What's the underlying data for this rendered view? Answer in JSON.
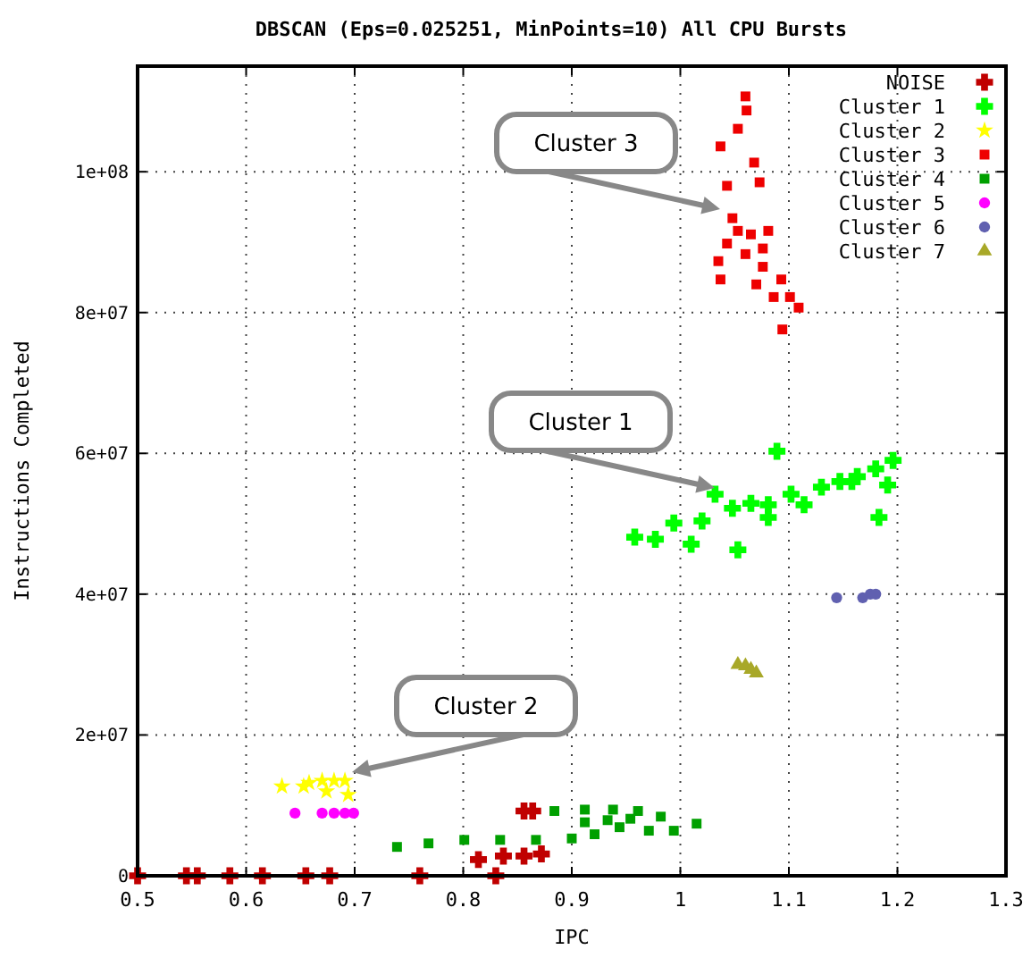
{
  "chart_data": {
    "type": "scatter",
    "title": "DBSCAN (Eps=0.025251, MinPoints=10) All CPU Bursts",
    "xlabel": "IPC",
    "ylabel": "Instructions Completed",
    "xlim": [
      0.5,
      1.3
    ],
    "xticks": [
      0.5,
      0.6,
      0.7,
      0.8,
      0.9,
      1,
      1.1,
      1.2,
      1.3
    ],
    "ylim": [
      0,
      115000000
    ],
    "yticks": [
      0,
      {
        "value": 20000000,
        "label": "2e+07"
      },
      {
        "value": 40000000,
        "label": "4e+07"
      },
      {
        "value": 60000000,
        "label": "6e+07"
      },
      {
        "value": 80000000,
        "label": "8e+07"
      },
      {
        "value": 100000000,
        "label": "1e+08"
      }
    ],
    "grid": true,
    "legend": "top right",
    "annotations": [
      "Cluster 3",
      "Cluster 1",
      "Cluster 2"
    ],
    "series": [
      {
        "name": "NOISE",
        "color": "#c00000",
        "marker": "cross",
        "x": [
          0.856,
          0.864,
          0.814,
          0.837,
          0.856,
          0.872,
          0.5,
          0.545,
          0.555,
          0.585,
          0.615,
          0.655,
          0.677,
          0.76,
          0.83
        ],
        "values": [
          9200000,
          9200000,
          2300000,
          2800000,
          2800000,
          3100000,
          0,
          0,
          0,
          0,
          0,
          0,
          0,
          0,
          0
        ]
      },
      {
        "name": "Cluster 1",
        "color": "#00ff00",
        "marker": "cross",
        "x": [
          0.958,
          0.977,
          0.994,
          1.01,
          1.02,
          1.032,
          1.048,
          1.053,
          1.065,
          1.081,
          1.081,
          1.089,
          1.102,
          1.114,
          1.13,
          1.147,
          1.163,
          1.18,
          1.196,
          1.191,
          1.183,
          1.158
        ],
        "values": [
          48100000,
          47800000,
          50100000,
          47100000,
          50400000,
          54200000,
          52200000,
          46300000,
          52900000,
          52700000,
          50900000,
          60300000,
          54200000,
          52700000,
          55200000,
          56000000,
          56700000,
          57800000,
          59000000,
          55500000,
          50900000,
          56000000
        ]
      },
      {
        "name": "Cluster 2",
        "color": "#ffff00",
        "marker": "star",
        "x": [
          0.633,
          0.658,
          0.67,
          0.681,
          0.691,
          0.674,
          0.694,
          0.653
        ],
        "values": [
          12700000,
          13200000,
          13500000,
          13500000,
          13500000,
          12000000,
          11500000,
          12700000
        ]
      },
      {
        "name": "Cluster 3",
        "color": "#ee0000",
        "marker": "square",
        "x": [
          1.06,
          1.061,
          1.053,
          1.037,
          1.068,
          1.043,
          1.073,
          1.048,
          1.065,
          1.081,
          1.035,
          1.037,
          1.06,
          1.076,
          1.093,
          1.086,
          1.109,
          1.094,
          1.043,
          1.076,
          1.101,
          1.07,
          1.053
        ],
        "values": [
          110700000,
          108700000,
          106100000,
          103600000,
          101300000,
          98000000,
          98500000,
          93400000,
          91100000,
          91600000,
          87300000,
          84700000,
          88300000,
          86500000,
          84700000,
          82200000,
          80700000,
          77600000,
          89800000,
          89100000,
          82200000,
          84000000,
          91600000
        ]
      },
      {
        "name": "Cluster 4",
        "color": "#00a000",
        "marker": "square",
        "x": [
          0.739,
          0.768,
          0.801,
          0.834,
          0.867,
          0.9,
          0.921,
          0.944,
          0.971,
          0.994,
          1.015,
          0.884,
          0.912,
          0.938,
          0.961,
          0.982,
          0.933,
          0.954,
          0.912
        ],
        "values": [
          4100000,
          4600000,
          5100000,
          5100000,
          5100000,
          5300000,
          5900000,
          6900000,
          6400000,
          6400000,
          7400000,
          9200000,
          9400000,
          9400000,
          9200000,
          8400000,
          7900000,
          8100000,
          7600000
        ]
      },
      {
        "name": "Cluster 5",
        "color": "#ff00ff",
        "marker": "circle",
        "x": [
          0.645,
          0.67,
          0.681,
          0.691,
          0.699
        ],
        "values": [
          8900000,
          8900000,
          8900000,
          8900000,
          8900000
        ]
      },
      {
        "name": "Cluster 6",
        "color": "#6060b0",
        "marker": "circle",
        "x": [
          1.175,
          1.18,
          1.168,
          1.144
        ],
        "values": [
          40000000,
          40000000,
          39500000,
          39500000
        ]
      },
      {
        "name": "Cluster 7",
        "color": "#a8a828",
        "marker": "triangle",
        "x": [
          1.06,
          1.065,
          1.07,
          1.053
        ],
        "values": [
          29800000,
          29300000,
          28800000,
          30000000
        ]
      }
    ]
  }
}
